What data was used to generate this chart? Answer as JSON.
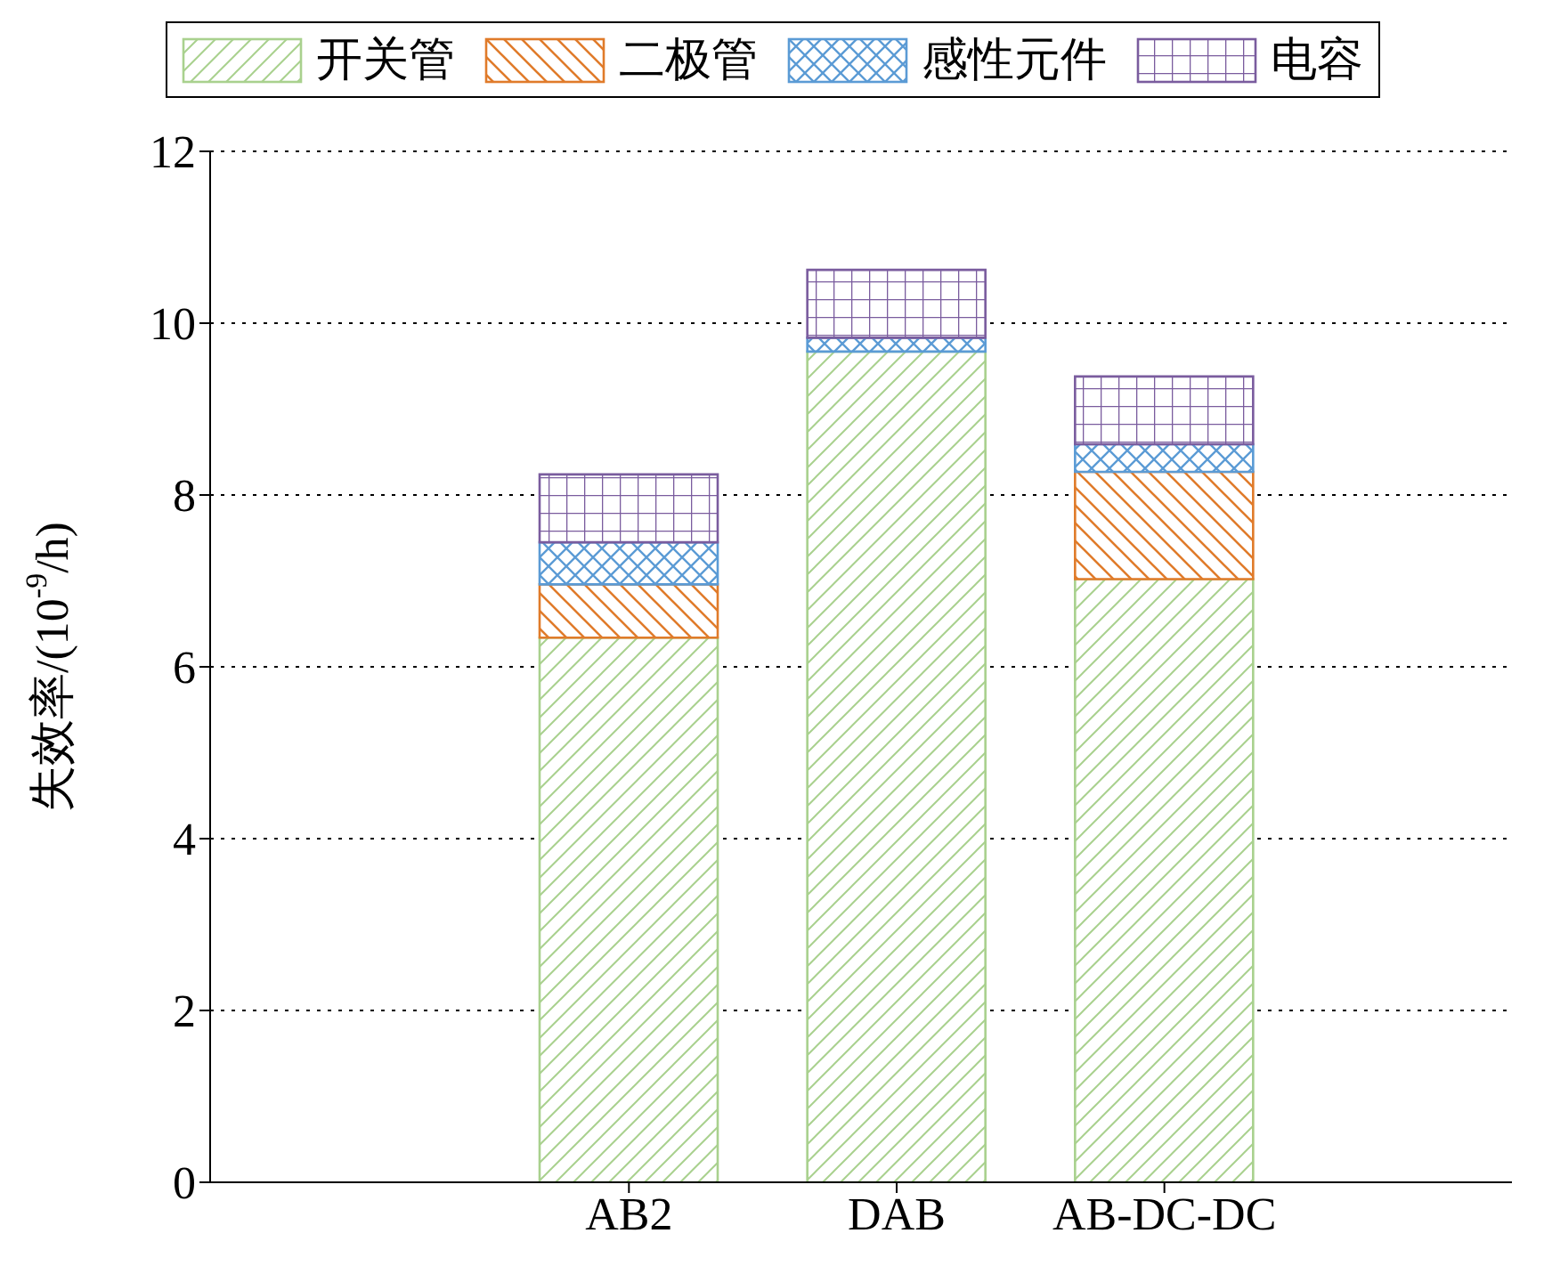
{
  "chart_data": {
    "type": "bar",
    "stacked": true,
    "ylabel": "失效率/(10$^{-9}$/h)",
    "categories": [
      "AB2",
      "DAB",
      "AB-DC-DC"
    ],
    "series": [
      {
        "name": "开关管",
        "color": "#a9d18e",
        "values": [
          6.34,
          9.67,
          7.02
        ]
      },
      {
        "name": "二极管",
        "color": "#e07b2a",
        "values": [
          0.62,
          0,
          1.25
        ]
      },
      {
        "name": "感性元件",
        "color": "#5b9bd5",
        "values": [
          0.49,
          0.16,
          0.32
        ]
      },
      {
        "name": "电容",
        "color": "#7a5c9e",
        "values": [
          0.79,
          0.79,
          0.79
        ]
      }
    ],
    "ylim": [
      0,
      12
    ],
    "yticks": [
      0,
      2,
      4,
      6,
      8,
      10,
      12
    ],
    "grid": "y",
    "legend": "top"
  }
}
